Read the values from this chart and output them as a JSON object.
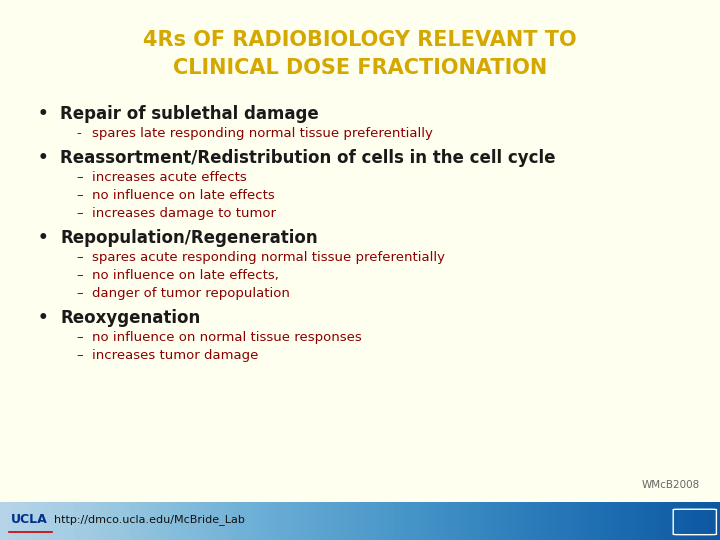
{
  "title_line1": "4Rs OF RADIOBIOLOGY RELEVANT TO",
  "title_line2": "CLINICAL DOSE FRACTIONATION",
  "title_color": "#D4A800",
  "bg_color": "#FFFFF0",
  "bullet_color": "#1a1a1a",
  "sub_color": "#8B0000",
  "bullet_symbol": "•",
  "content": [
    {
      "bullet": "Repair of sublethal damage",
      "subs": [
        {
          "dash": "-",
          "text": "spares late responding normal tissue preferentially"
        }
      ]
    },
    {
      "bullet": "Reassortment/Redistribution of cells in the cell cycle",
      "subs": [
        {
          "dash": "–",
          "text": "increases acute effects"
        },
        {
          "dash": "–",
          "text": "no influence on late effects"
        },
        {
          "dash": "–",
          "text": "increases damage to tumor"
        }
      ]
    },
    {
      "bullet": "Repopulation/Regeneration",
      "subs": [
        {
          "dash": "–",
          "text": "spares acute responding normal tissue preferentially"
        },
        {
          "dash": "–",
          "text": "no influence on late effects,"
        },
        {
          "dash": "–",
          "text": "danger of tumor repopulation"
        }
      ]
    },
    {
      "bullet": "Reoxygenation",
      "subs": [
        {
          "dash": "–",
          "text": "no influence on normal tissue responses"
        },
        {
          "dash": "–",
          "text": "increases tumor damage"
        }
      ]
    }
  ],
  "footer_text": "http://dmco.ucla.edu/McBride_Lab",
  "watermark": "WMcB2008",
  "footer_bg_left": "#7EB6E8",
  "footer_bg_right": "#4A90C4",
  "ucla_red": "#CC0000",
  "ucla_blue": "#003087",
  "title_fontsize": 15,
  "bullet_fontsize": 12,
  "sub_fontsize": 9.5
}
